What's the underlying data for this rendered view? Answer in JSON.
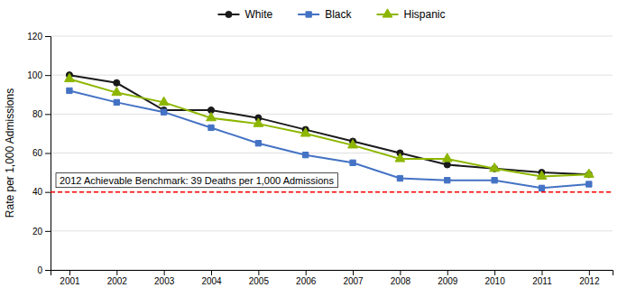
{
  "chart_data": {
    "type": "line",
    "x": [
      2001,
      2002,
      2003,
      2004,
      2005,
      2006,
      2007,
      2008,
      2009,
      2010,
      2011,
      2012
    ],
    "xlim": [
      2000.6,
      2012.5
    ],
    "xticks": [
      2001,
      2002,
      2003,
      2004,
      2005,
      2006,
      2007,
      2008,
      2009,
      2010,
      2011,
      2012
    ],
    "ylim": [
      0,
      120
    ],
    "yticks": [
      0,
      20,
      40,
      60,
      80,
      100,
      120
    ],
    "ylabel": "Rate per 1,000 Admissions",
    "grid": true,
    "legend": "top",
    "series": [
      {
        "name": "White",
        "color": "#1a1a1a",
        "marker": "circle",
        "values": [
          100,
          96,
          82,
          82,
          78,
          72,
          66,
          60,
          54,
          52,
          50,
          49
        ]
      },
      {
        "name": "Black",
        "color": "#4472c4",
        "marker": "square",
        "values": [
          92,
          86,
          81,
          73,
          65,
          59,
          55,
          47,
          46,
          46,
          42,
          44
        ]
      },
      {
        "name": "Hispanic",
        "color": "#8db600",
        "marker": "triangle",
        "values": [
          98,
          91,
          86,
          78,
          75,
          70,
          64,
          57,
          57,
          52,
          48,
          49
        ]
      }
    ],
    "reference_lines": [
      {
        "y": 40,
        "color": "#ff0000",
        "line_style": "dashed",
        "label": "2012 Achievable Benchmark: 39 Deaths per 1,000 Admissions"
      }
    ]
  }
}
